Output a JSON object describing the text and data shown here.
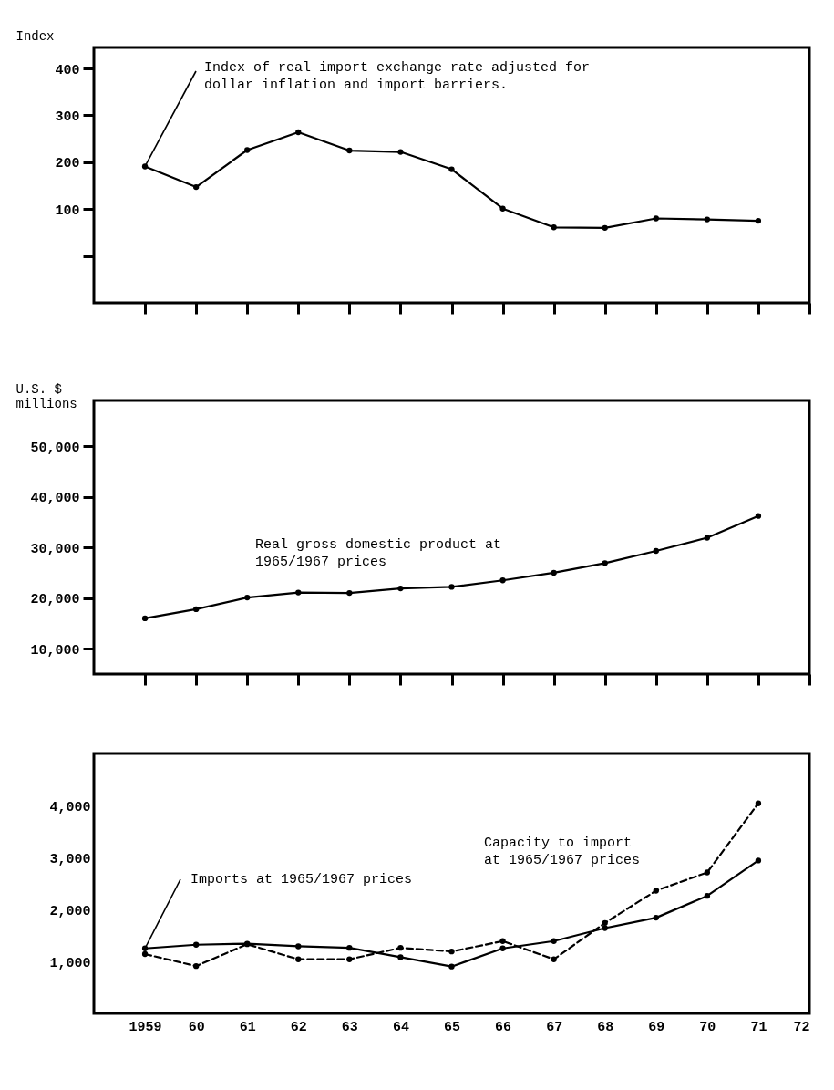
{
  "chart_data": [
    {
      "type": "line",
      "ylabel": "Index",
      "xlim": [
        1958,
        1972
      ],
      "xticks": [
        1959,
        1960,
        1961,
        1962,
        1963,
        1964,
        1965,
        1966,
        1967,
        1968,
        1969,
        1970,
        1971,
        1972
      ],
      "ylim": [
        -100,
        445
      ],
      "yticks": [
        {
          "value": 0,
          "label": null
        },
        100,
        200,
        300,
        400
      ],
      "tick_labels": "y",
      "grid": false,
      "marker": "circle",
      "x": [
        1959,
        1960,
        1961,
        1962,
        1963,
        1964,
        1965,
        1966,
        1967,
        1968,
        1969,
        1970,
        1971
      ],
      "series": [
        {
          "name": "Index of real import exchange rate adjusted for dollar inflation and import barriers.",
          "color": "#000000",
          "line_style": "solid",
          "values": [
            191,
            147,
            226,
            264,
            225,
            222,
            185,
            101,
            61,
            60,
            80,
            78,
            75
          ]
        }
      ]
    },
    {
      "type": "line",
      "ylabel": "U.S. $ millions",
      "xlim": [
        1958,
        1972
      ],
      "xticks": [
        1959,
        1960,
        1961,
        1962,
        1963,
        1964,
        1965,
        1966,
        1967,
        1968,
        1969,
        1970,
        1971,
        1972
      ],
      "ylim": [
        5000,
        59000
      ],
      "yticks": [
        {
          "value": 10000,
          "label": "10,000"
        },
        {
          "value": 20000,
          "label": "20,000"
        },
        {
          "value": 30000,
          "label": "30,000"
        },
        {
          "value": 40000,
          "label": "40,000"
        },
        {
          "value": 50000,
          "label": "50,000"
        }
      ],
      "tick_labels": "y",
      "grid": false,
      "marker": "circle",
      "x": [
        1959,
        1960,
        1961,
        1962,
        1963,
        1964,
        1965,
        1966,
        1967,
        1968,
        1969,
        1970,
        1971
      ],
      "series": [
        {
          "name": "Real gross domestic product at 1965/1967 prices",
          "color": "#000000",
          "line_style": "solid",
          "values": [
            16000,
            17800,
            20100,
            21100,
            21000,
            21900,
            22200,
            23500,
            25000,
            26900,
            29300,
            31900,
            36200
          ]
        }
      ]
    },
    {
      "type": "line",
      "xlim": [
        1958,
        1972
      ],
      "xticks": [
        {
          "value": 1959,
          "label": "1959"
        },
        {
          "value": 1960,
          "label": "60"
        },
        {
          "value": 1961,
          "label": "61"
        },
        {
          "value": 1962,
          "label": "62"
        },
        {
          "value": 1963,
          "label": "63"
        },
        {
          "value": 1964,
          "label": "64"
        },
        {
          "value": 1965,
          "label": "65"
        },
        {
          "value": 1966,
          "label": "66"
        },
        {
          "value": 1967,
          "label": "67"
        },
        {
          "value": 1968,
          "label": "68"
        },
        {
          "value": 1969,
          "label": "69"
        },
        {
          "value": 1970,
          "label": "70"
        },
        {
          "value": 1971,
          "label": "71"
        },
        {
          "value": 1972,
          "label": "72"
        }
      ],
      "ylim": [
        0,
        5000
      ],
      "yticks": [
        {
          "value": 1000,
          "label": "1,000"
        },
        {
          "value": 2000,
          "label": "2,000"
        },
        {
          "value": 3000,
          "label": "3,000"
        },
        {
          "value": 4000,
          "label": "4,000"
        }
      ],
      "grid": false,
      "marker": "circle",
      "x": [
        1959,
        1960,
        1961,
        1962,
        1963,
        1964,
        1965,
        1966,
        1967,
        1968,
        1969,
        1970,
        1971
      ],
      "series": [
        {
          "name": "Imports at 1965/1967 prices",
          "color": "#000000",
          "line_style": "solid",
          "values": [
            1250,
            1320,
            1340,
            1290,
            1260,
            1080,
            900,
            1250,
            1390,
            1640,
            1840,
            2260,
            2940
          ]
        },
        {
          "name": "Capacity to import at 1965/1967 prices",
          "color": "#000000",
          "line_style": "dashed",
          "values": [
            1140,
            910,
            1330,
            1040,
            1040,
            1260,
            1190,
            1390,
            1040,
            1740,
            2360,
            2710,
            4040
          ]
        }
      ]
    }
  ]
}
